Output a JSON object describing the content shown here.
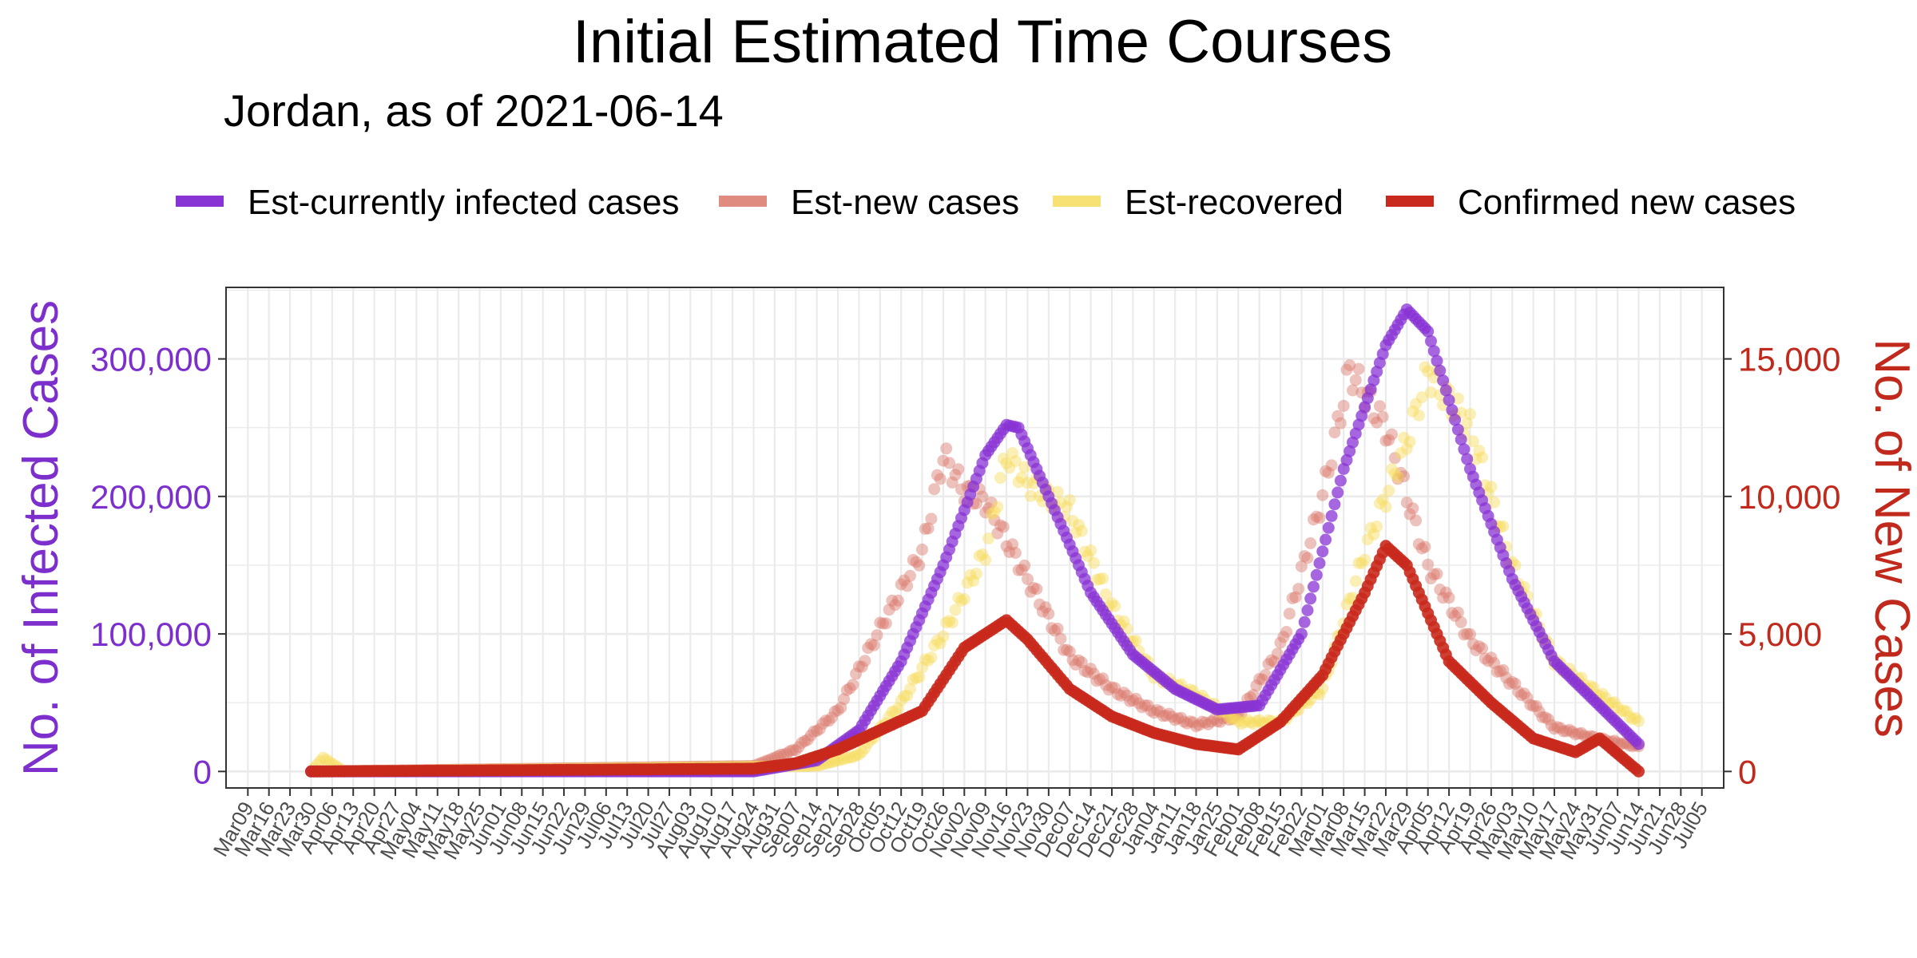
{
  "colors": {
    "infected": "#8833D4",
    "new_est": "#D9776A",
    "recovered": "#F7DC5A",
    "confirmed": "#C9291C",
    "left_axis": "#7D2FCE",
    "right_axis": "#C0291C",
    "grid": "#EBEBEB"
  },
  "chart_data": {
    "type": "scatter",
    "title": "Initial Estimated Time Courses",
    "subtitle": "Jordan, as of 2021-06-14",
    "ylabel_left": "No. of Infected Cases",
    "ylabel_right": "No. of New Cases",
    "ylim_left": [
      -12000,
      352000
    ],
    "ylim_right": [
      -600,
      17600
    ],
    "yticks_left": [
      {
        "value": 0,
        "label": "0"
      },
      {
        "value": 100000,
        "label": "100,000"
      },
      {
        "value": 200000,
        "label": "200,000"
      },
      {
        "value": 300000,
        "label": "300,000"
      }
    ],
    "yticks_right": [
      {
        "value": 0,
        "label": "0"
      },
      {
        "value": 5000,
        "label": "5,000"
      },
      {
        "value": 10000,
        "label": "10,000"
      },
      {
        "value": 15000,
        "label": "15,000"
      }
    ],
    "xlim": [
      "2020-03-09",
      "2021-07-05"
    ],
    "xticks": [
      "Mar09",
      "Mar16",
      "Mar23",
      "Mar30",
      "Apr06",
      "Apr13",
      "Apr20",
      "Apr27",
      "May04",
      "May11",
      "May18",
      "May25",
      "Jun01",
      "Jun08",
      "Jun15",
      "Jun22",
      "Jun29",
      "Jul06",
      "Jul13",
      "Jul20",
      "Jul27",
      "Aug03",
      "Aug10",
      "Aug17",
      "Aug24",
      "Aug31",
      "Sep07",
      "Sep14",
      "Sep21",
      "Sep28",
      "Oct05",
      "Oct12",
      "Oct19",
      "Oct26",
      "Nov02",
      "Nov09",
      "Nov16",
      "Nov23",
      "Nov30",
      "Dec07",
      "Dec14",
      "Dec21",
      "Dec28",
      "Jan04",
      "Jan11",
      "Jan18",
      "Jan25",
      "Feb01",
      "Feb08",
      "Feb15",
      "Feb22",
      "Mar01",
      "Mar08",
      "Mar15",
      "Mar22",
      "Mar29",
      "Apr05",
      "Apr12",
      "Apr19",
      "Apr26",
      "May03",
      "May10",
      "May17",
      "May24",
      "May31",
      "Jun07",
      "Jun14",
      "Jun21",
      "Jun28",
      "Jul05"
    ],
    "legend_position": "top",
    "grid": true,
    "series": [
      {
        "name": "Est-currently infected cases",
        "axis": "left",
        "points": [
          [
            "2020-03-30",
            0
          ],
          [
            "2020-08-24",
            0
          ],
          [
            "2020-09-14",
            8000
          ],
          [
            "2020-09-28",
            30000
          ],
          [
            "2020-10-12",
            80000
          ],
          [
            "2020-10-26",
            150000
          ],
          [
            "2020-11-09",
            230000
          ],
          [
            "2020-11-16",
            252000
          ],
          [
            "2020-11-20",
            250000
          ],
          [
            "2020-11-30",
            200000
          ],
          [
            "2020-12-14",
            130000
          ],
          [
            "2020-12-28",
            85000
          ],
          [
            "2021-01-11",
            60000
          ],
          [
            "2021-01-25",
            45000
          ],
          [
            "2021-02-08",
            48000
          ],
          [
            "2021-02-22",
            100000
          ],
          [
            "2021-03-08",
            220000
          ],
          [
            "2021-03-22",
            310000
          ],
          [
            "2021-03-29",
            336000
          ],
          [
            "2021-04-05",
            320000
          ],
          [
            "2021-04-19",
            220000
          ],
          [
            "2021-05-03",
            140000
          ],
          [
            "2021-05-17",
            80000
          ],
          [
            "2021-05-31",
            50000
          ],
          [
            "2021-06-14",
            20000
          ]
        ]
      },
      {
        "name": "Est-new cases",
        "axis": "right",
        "points": [
          [
            "2020-03-30",
            0
          ],
          [
            "2020-08-24",
            200
          ],
          [
            "2020-09-07",
            800
          ],
          [
            "2020-09-21",
            2200
          ],
          [
            "2020-10-05",
            5200
          ],
          [
            "2020-10-19",
            8000
          ],
          [
            "2020-10-26",
            11500
          ],
          [
            "2020-11-02",
            10200
          ],
          [
            "2020-11-09",
            9800
          ],
          [
            "2020-11-23",
            7000
          ],
          [
            "2020-12-07",
            4200
          ],
          [
            "2020-12-21",
            3000
          ],
          [
            "2021-01-04",
            2200
          ],
          [
            "2021-01-18",
            1700
          ],
          [
            "2021-02-01",
            2000
          ],
          [
            "2021-02-15",
            4500
          ],
          [
            "2021-03-01",
            10000
          ],
          [
            "2021-03-10",
            14600
          ],
          [
            "2021-03-22",
            12500
          ],
          [
            "2021-04-05",
            7500
          ],
          [
            "2021-04-19",
            4800
          ],
          [
            "2021-05-03",
            3200
          ],
          [
            "2021-05-17",
            1600
          ],
          [
            "2021-05-31",
            1200
          ],
          [
            "2021-06-14",
            900
          ]
        ]
      },
      {
        "name": "Est-recovered",
        "axis": "right",
        "points": [
          [
            "2020-03-30",
            0
          ],
          [
            "2020-04-03",
            500
          ],
          [
            "2020-04-10",
            0
          ],
          [
            "2020-09-14",
            200
          ],
          [
            "2020-09-28",
            600
          ],
          [
            "2020-10-12",
            2500
          ],
          [
            "2020-10-26",
            5000
          ],
          [
            "2020-11-09",
            8000
          ],
          [
            "2020-11-16",
            11500
          ],
          [
            "2020-11-23",
            10500
          ],
          [
            "2020-12-07",
            9500
          ],
          [
            "2020-12-21",
            6000
          ],
          [
            "2021-01-04",
            3500
          ],
          [
            "2021-01-18",
            2800
          ],
          [
            "2021-02-01",
            1800
          ],
          [
            "2021-02-15",
            1800
          ],
          [
            "2021-03-01",
            3000
          ],
          [
            "2021-03-15",
            8000
          ],
          [
            "2021-03-29",
            12000
          ],
          [
            "2021-04-05",
            14500
          ],
          [
            "2021-04-19",
            12500
          ],
          [
            "2021-05-03",
            7500
          ],
          [
            "2021-05-17",
            4000
          ],
          [
            "2021-06-01",
            2800
          ],
          [
            "2021-06-14",
            1800
          ]
        ]
      },
      {
        "name": "Confirmed new cases",
        "axis": "right",
        "points": [
          [
            "2020-03-30",
            0
          ],
          [
            "2020-08-24",
            100
          ],
          [
            "2020-09-07",
            300
          ],
          [
            "2020-09-21",
            800
          ],
          [
            "2020-10-05",
            1500
          ],
          [
            "2020-10-19",
            2200
          ],
          [
            "2020-11-02",
            4500
          ],
          [
            "2020-11-16",
            5500
          ],
          [
            "2020-11-23",
            4800
          ],
          [
            "2020-12-07",
            3000
          ],
          [
            "2020-12-21",
            2000
          ],
          [
            "2021-01-04",
            1400
          ],
          [
            "2021-01-18",
            1000
          ],
          [
            "2021-02-01",
            800
          ],
          [
            "2021-02-15",
            1800
          ],
          [
            "2021-03-01",
            3500
          ],
          [
            "2021-03-15",
            6500
          ],
          [
            "2021-03-22",
            8200
          ],
          [
            "2021-03-29",
            7500
          ],
          [
            "2021-04-12",
            4000
          ],
          [
            "2021-04-26",
            2500
          ],
          [
            "2021-05-10",
            1200
          ],
          [
            "2021-05-24",
            700
          ],
          [
            "2021-06-01",
            1200
          ],
          [
            "2021-06-14",
            0
          ]
        ]
      }
    ]
  }
}
